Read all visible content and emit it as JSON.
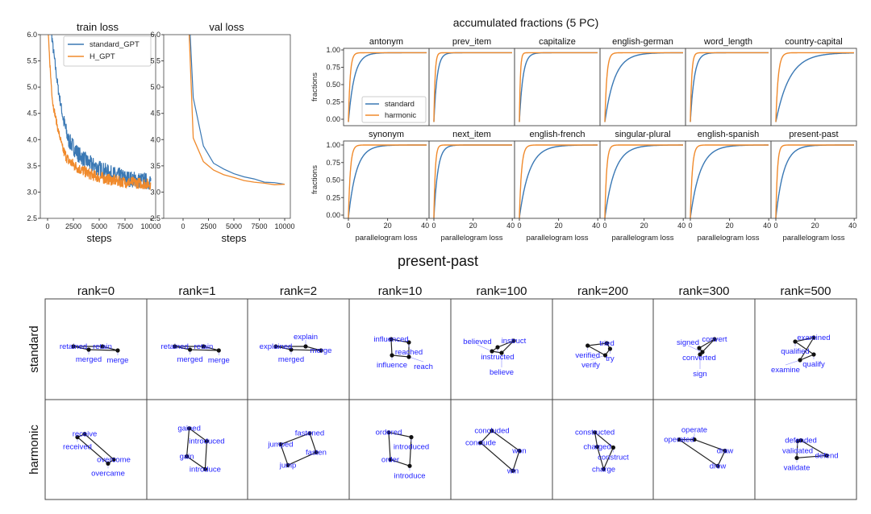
{
  "colors": {
    "standard": "#3a78b4",
    "harmonic": "#f08a2c",
    "word": "#2222ff"
  },
  "chart_data": [
    {
      "type": "line",
      "title": "train loss",
      "xlabel": "steps",
      "ylabel": "",
      "xlim": [
        0,
        10000
      ],
      "ylim": [
        2.5,
        6.0
      ],
      "xticks": [
        "0",
        "2500",
        "5000",
        "7500",
        "10000"
      ],
      "yticks": [
        "2.5",
        "3.0",
        "3.5",
        "4.0",
        "4.5",
        "5.0",
        "5.5",
        "6.0"
      ],
      "legend": {
        "position": "top-right",
        "entries": [
          "standard_GPT",
          "H_GPT"
        ]
      },
      "series": [
        {
          "name": "standard_GPT",
          "noise": 0.16,
          "trend": [
            [
              0,
              7.0
            ],
            [
              300,
              6.2
            ],
            [
              500,
              5.8
            ],
            [
              1000,
              5.0
            ],
            [
              1500,
              4.4
            ],
            [
              2000,
              4.0
            ],
            [
              3000,
              3.72
            ],
            [
              4000,
              3.55
            ],
            [
              5000,
              3.45
            ],
            [
              6000,
              3.36
            ],
            [
              7000,
              3.3
            ],
            [
              8000,
              3.25
            ],
            [
              10000,
              3.2
            ]
          ]
        },
        {
          "name": "H_GPT",
          "noise": 0.11,
          "trend": [
            [
              0,
              6.2
            ],
            [
              300,
              5.2
            ],
            [
              500,
              4.7
            ],
            [
              1000,
              4.2
            ],
            [
              1500,
              3.8
            ],
            [
              2000,
              3.6
            ],
            [
              3000,
              3.45
            ],
            [
              4000,
              3.35
            ],
            [
              5000,
              3.28
            ],
            [
              7000,
              3.2
            ],
            [
              10000,
              3.15
            ]
          ]
        }
      ]
    },
    {
      "type": "line",
      "title": "val loss",
      "xlabel": "steps",
      "xlim": [
        0,
        10000
      ],
      "ylim": [
        2.5,
        6.0
      ],
      "xticks": [
        "0",
        "2500",
        "5000",
        "7500",
        "10000"
      ],
      "yticks": [
        "2.5",
        "3.0",
        "3.5",
        "4.0",
        "4.5",
        "5.0",
        "5.5",
        "6.0"
      ],
      "series": [
        {
          "name": "standard_GPT",
          "points": [
            [
              700,
              6.0
            ],
            [
              1000,
              4.8
            ],
            [
              2000,
              3.88
            ],
            [
              3000,
              3.55
            ],
            [
              4000,
              3.44
            ],
            [
              5000,
              3.35
            ],
            [
              6000,
              3.29
            ],
            [
              7000,
              3.25
            ],
            [
              8000,
              3.19
            ],
            [
              9000,
              3.18
            ],
            [
              10000,
              3.15
            ]
          ]
        },
        {
          "name": "H_GPT",
          "points": [
            [
              600,
              6.0
            ],
            [
              1000,
              4.03
            ],
            [
              2000,
              3.58
            ],
            [
              3000,
              3.42
            ],
            [
              4000,
              3.33
            ],
            [
              5000,
              3.28
            ],
            [
              6000,
              3.22
            ],
            [
              7000,
              3.19
            ],
            [
              8000,
              3.17
            ],
            [
              9000,
              3.14
            ],
            [
              10000,
              3.15
            ]
          ]
        }
      ]
    },
    {
      "type": "line",
      "title": "accumulated fractions (5 PC)",
      "xlabel": "parallelogram loss",
      "ylabel": "fractions",
      "xlim": [
        0,
        40
      ],
      "ylim": [
        0,
        1
      ],
      "xticks": [
        "0",
        "20",
        "40"
      ],
      "yticks": [
        "0.00",
        "0.25",
        "0.50",
        "0.75",
        "1.00"
      ],
      "legend": {
        "position": "lower-right",
        "panel": "antonym",
        "entries": [
          "standard",
          "harmonic"
        ]
      },
      "note": "cumulative fraction curves modelled as plateau*(1-exp(-x/scale))",
      "panels": [
        {
          "name": "antonym",
          "plateau": 0.96,
          "standard_scale": 3.0,
          "harmonic_scale": 0.9
        },
        {
          "name": "prev_item",
          "plateau": 0.96,
          "standard_scale": 1.6,
          "harmonic_scale": 0.6
        },
        {
          "name": "capitalize",
          "plateau": 0.96,
          "standard_scale": 1.8,
          "harmonic_scale": 0.5
        },
        {
          "name": "english-german",
          "plateau": 0.96,
          "standard_scale": 5.0,
          "harmonic_scale": 1.0
        },
        {
          "name": "word_length",
          "plateau": 0.96,
          "standard_scale": 2.0,
          "harmonic_scale": 0.7
        },
        {
          "name": "country-capital",
          "plateau": 0.96,
          "standard_scale": 7.0,
          "harmonic_scale": 1.2
        },
        {
          "name": "synonym",
          "plateau": 1.0,
          "standard_scale": 4.0,
          "harmonic_scale": 1.0
        },
        {
          "name": "next_item",
          "plateau": 1.0,
          "standard_scale": 2.0,
          "harmonic_scale": 0.7
        },
        {
          "name": "english-french",
          "plateau": 1.0,
          "standard_scale": 5.0,
          "harmonic_scale": 1.1
        },
        {
          "name": "singular-plural",
          "plateau": 1.0,
          "standard_scale": 5.0,
          "harmonic_scale": 0.9
        },
        {
          "name": "english-spanish",
          "plateau": 1.0,
          "standard_scale": 5.0,
          "harmonic_scale": 1.0
        },
        {
          "name": "present-past",
          "plateau": 1.0,
          "standard_scale": 4.0,
          "harmonic_scale": 0.8
        }
      ]
    },
    {
      "type": "scatter",
      "title": "present-past",
      "xlim": [
        0,
        12.6
      ],
      "ylim": [
        0,
        12.5
      ],
      "rows": [
        "standard",
        "harmonic"
      ],
      "columns": [
        "rank=0",
        "rank=1",
        "rank=2",
        "rank=10",
        "rank=100",
        "rank=200",
        "rank=300",
        "rank=500"
      ],
      "cells": [
        [
          [
            [
              "retained",
              3.5,
              6.6
            ],
            [
              "merged",
              5.4,
              6.2
            ],
            [
              "merge",
              9.0,
              6.1
            ],
            [
              "retain",
              7.1,
              6.6
            ]
          ],
          [
            [
              "retained",
              3.5,
              6.6
            ],
            [
              "merged",
              5.4,
              6.2
            ],
            [
              "merge",
              9.0,
              6.1
            ],
            [
              "retain",
              7.1,
              6.6
            ]
          ],
          [
            [
              "explained",
              3.5,
              6.6
            ],
            [
              "merged",
              5.4,
              6.2
            ],
            [
              "merge",
              9.1,
              6.1
            ],
            [
              "explain",
              7.2,
              6.6
            ]
          ],
          [
            [
              "influenced",
              5.2,
              7.5
            ],
            [
              "influence",
              5.3,
              5.5
            ],
            [
              "reach",
              7.4,
              5.3
            ],
            [
              "reached",
              7.4,
              7.1
            ]
          ],
          [
            [
              "instructed",
              5.8,
              6.5
            ],
            [
              "instruct",
              7.8,
              7.3
            ],
            [
              "believe",
              6.3,
              5.8
            ],
            [
              "believed",
              5.1,
              6.0
            ]
          ],
          [
            [
              "verified",
              4.4,
              6.7
            ],
            [
              "verify",
              6.6,
              5.5
            ],
            [
              "try",
              7.2,
              6.3
            ],
            [
              "tried",
              6.8,
              7.0
            ]
          ],
          [
            [
              "converted",
              5.7,
              6.4
            ],
            [
              "convert",
              7.6,
              7.5
            ],
            [
              "sign",
              5.8,
              5.6
            ],
            [
              "signed",
              6.1,
              5.9
            ]
          ],
          [
            [
              "qualified",
              5.0,
              7.2
            ],
            [
              "qualify",
              7.3,
              5.6
            ],
            [
              "examine",
              5.6,
              4.9
            ],
            [
              "examined",
              7.3,
              7.7
            ]
          ]
        ],
        [
          [
            [
              "received",
              4.0,
              7.8
            ],
            [
              "receive",
              4.9,
              8.2
            ],
            [
              "overcome",
              8.5,
              5.0
            ],
            [
              "overcame",
              7.8,
              4.5
            ]
          ],
          [
            [
              "gained",
              5.3,
              8.9
            ],
            [
              "gain",
              5.0,
              5.4
            ],
            [
              "introduce",
              7.3,
              3.8
            ],
            [
              "introduced",
              7.5,
              7.3
            ]
          ],
          [
            [
              "jumped",
              4.1,
              6.9
            ],
            [
              "jump",
              5.0,
              4.3
            ],
            [
              "fasten",
              8.5,
              5.9
            ],
            [
              "fastened",
              7.7,
              8.3
            ]
          ],
          [
            [
              "ordered",
              4.9,
              8.4
            ],
            [
              "order",
              5.1,
              5.0
            ],
            [
              "introduce",
              7.5,
              4.2
            ],
            [
              "introduced",
              7.7,
              7.8
            ]
          ],
          [
            [
              "concluded",
              5.1,
              8.6
            ],
            [
              "conclude",
              3.7,
              7.1
            ],
            [
              "win",
              7.7,
              3.6
            ],
            [
              "won",
              8.5,
              6.1
            ]
          ],
          [
            [
              "constructed",
              5.3,
              8.4
            ],
            [
              "construct",
              7.6,
              6.5
            ],
            [
              "charge",
              6.4,
              3.8
            ],
            [
              "charged",
              5.6,
              6.6
            ]
          ],
          [
            [
              "operated",
              3.2,
              7.5
            ],
            [
              "operate",
              5.1,
              7.5
            ],
            [
              "draw",
              8.9,
              6.1
            ],
            [
              "drew",
              8.0,
              4.2
            ]
          ],
          [
            [
              "validated",
              5.3,
              7.3
            ],
            [
              "validate",
              5.2,
              5.2
            ],
            [
              "defend",
              8.9,
              5.5
            ],
            [
              "defended",
              5.7,
              7.4
            ]
          ]
        ]
      ]
    }
  ]
}
